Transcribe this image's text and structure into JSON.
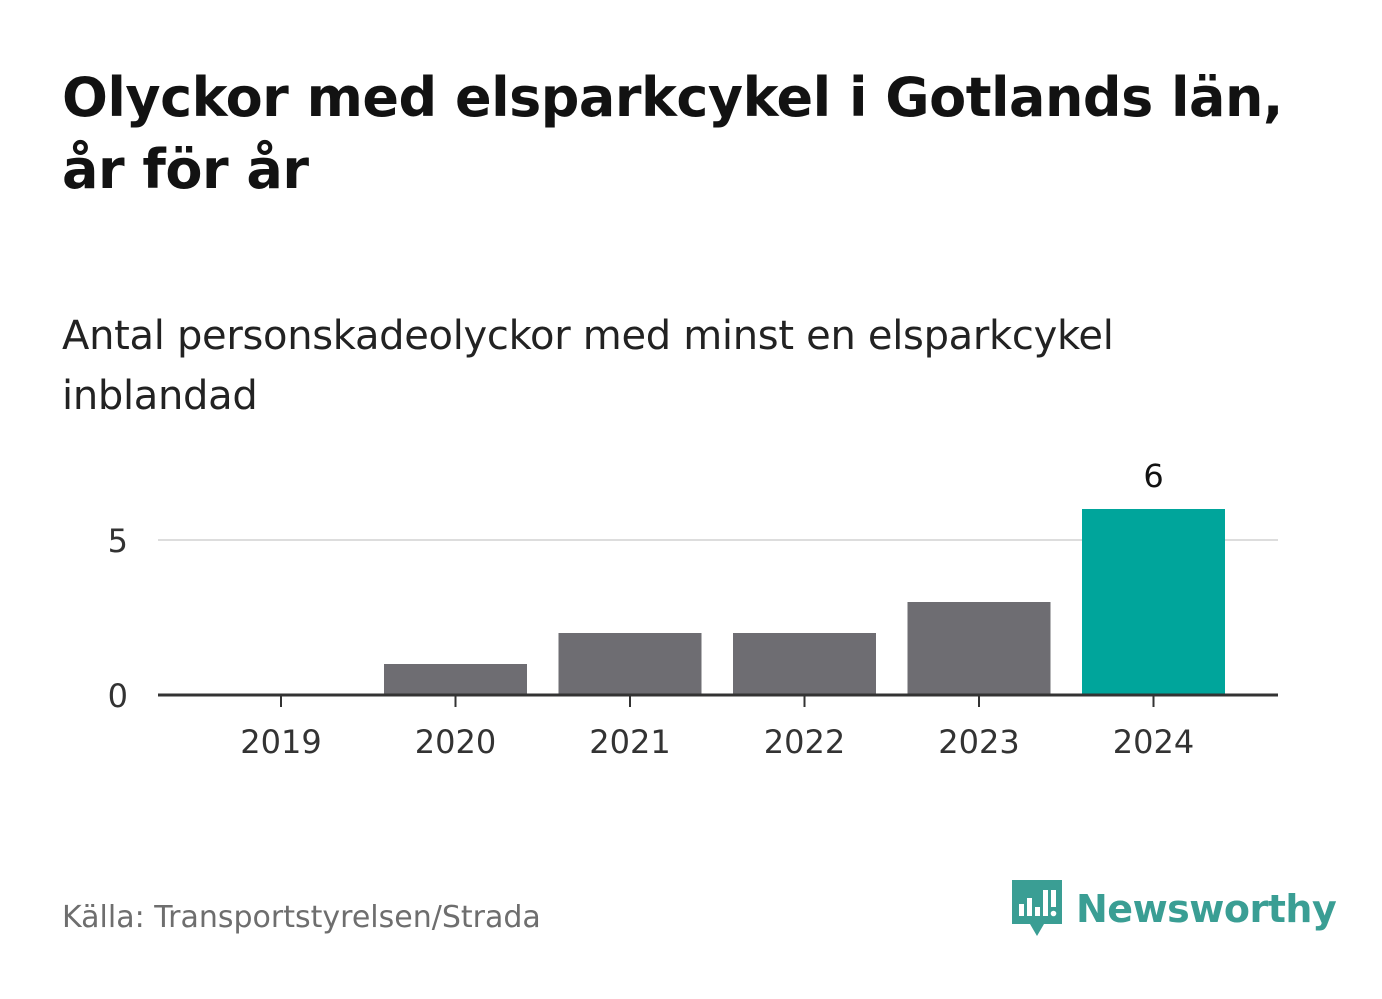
{
  "header": {
    "title": "Olyckor med elsparkcykel i Gotlands län, år för år",
    "subtitle": "Antal personskadeolyckor med minst en elsparkcykel inblandad"
  },
  "footer": {
    "source": "Källa: Transportstyrelsen/Strada",
    "brand": "Newsworthy",
    "brand_icon": "newsworthy-logo-icon"
  },
  "colors": {
    "bar_default": "#6e6d72",
    "bar_highlight": "#00a59b",
    "brand": "#3a9e94",
    "grid": "#dddddd",
    "axis": "#333333"
  },
  "chart_data": {
    "type": "bar",
    "title": "Olyckor med elsparkcykel i Gotlands län, år för år",
    "subtitle": "Antal personskadeolyckor med minst en elsparkcykel inblandad",
    "xlabel": "",
    "ylabel": "",
    "categories": [
      "2019",
      "2020",
      "2021",
      "2022",
      "2023",
      "2024"
    ],
    "values": [
      0,
      1,
      2,
      2,
      3,
      6
    ],
    "highlight_index": 5,
    "data_labels": [
      {
        "category": "2024",
        "value": "6"
      }
    ],
    "ylim": [
      0,
      6
    ],
    "yticks": [
      0,
      5
    ],
    "grid": true,
    "legend": "none"
  }
}
